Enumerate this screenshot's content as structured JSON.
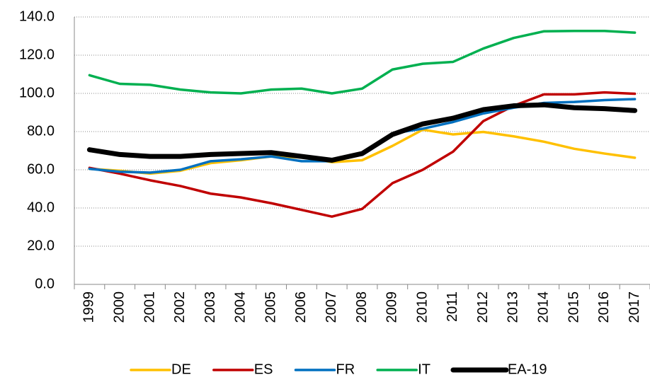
{
  "chart_data": {
    "type": "line",
    "categories": [
      "1999",
      "2000",
      "2001",
      "2002",
      "2003",
      "2004",
      "2005",
      "2006",
      "2007",
      "2008",
      "2009",
      "2010",
      "2011",
      "2012",
      "2013",
      "2014",
      "2015",
      "2016",
      "2017"
    ],
    "series": [
      {
        "name": "DE",
        "color": "#ffc000",
        "values": [
          60.5,
          59.5,
          58.0,
          59.5,
          63.5,
          65.0,
          67.0,
          66.5,
          64.0,
          65.0,
          72.5,
          81.0,
          78.5,
          79.8,
          77.5,
          74.7,
          71.0,
          68.5,
          66.3
        ]
      },
      {
        "name": "ES",
        "color": "#c00000",
        "values": [
          61.0,
          58.0,
          54.5,
          51.5,
          47.5,
          45.5,
          42.5,
          39.0,
          35.5,
          39.5,
          53.0,
          60.0,
          69.5,
          85.5,
          93.5,
          99.5,
          99.5,
          100.5,
          99.8
        ]
      },
      {
        "name": "FR",
        "color": "#0070c0",
        "values": [
          60.5,
          59.0,
          58.5,
          60.0,
          64.5,
          65.5,
          67.0,
          64.5,
          64.5,
          68.5,
          79.0,
          81.5,
          85.0,
          89.5,
          92.5,
          95.0,
          95.5,
          96.5,
          97.0
        ]
      },
      {
        "name": "IT",
        "color": "#00b050",
        "values": [
          109.5,
          105.0,
          104.5,
          102.0,
          100.5,
          100.0,
          102.0,
          102.5,
          100.0,
          102.5,
          112.5,
          115.5,
          116.5,
          123.5,
          129.0,
          132.5,
          132.7,
          132.7,
          131.8
        ]
      },
      {
        "name": "EA-19",
        "color": "#000000",
        "values": [
          70.5,
          68.0,
          67.0,
          67.0,
          68.0,
          68.5,
          69.0,
          67.0,
          65.0,
          68.5,
          78.5,
          84.0,
          87.0,
          91.5,
          93.5,
          94.0,
          92.5,
          92.0,
          91.0
        ]
      }
    ],
    "ylim": [
      0,
      140
    ],
    "yticks": [
      {
        "value": 0,
        "label": "0.0"
      },
      {
        "value": 20,
        "label": "20.0"
      },
      {
        "value": 40,
        "label": "40.0"
      },
      {
        "value": 60,
        "label": "60.0"
      },
      {
        "value": 80,
        "label": "80.0"
      },
      {
        "value": 100,
        "label": "100.0"
      },
      {
        "value": 120,
        "label": "120.0"
      },
      {
        "value": 140,
        "label": "140.0"
      }
    ],
    "grid": true
  }
}
